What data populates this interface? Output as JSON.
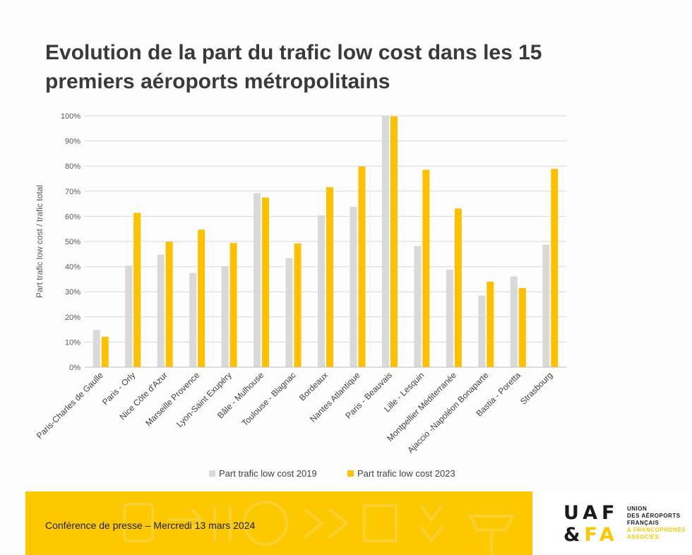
{
  "slide": {
    "title": "Evolution de la part du trafic low cost dans les 15 premiers aéroports métropolitains",
    "footer_text": "Conférence de presse – Mercredi 13 mars 2024",
    "logo": {
      "line1": "UAF",
      "line2_amp": "&",
      "line2_fa": "FA",
      "text_line1": "UNION",
      "text_line2": "DES AÉROPORTS",
      "text_line3": "FRANÇAIS",
      "text_line4": "& FRANCOPHONES",
      "text_line5": "ASSOCIÉS"
    },
    "colors": {
      "accent_yellow": "#fcc800",
      "series_2019": "#d9d9d9",
      "series_2023": "#ffc000",
      "title_text": "#3a3a3a"
    }
  },
  "chart_data": {
    "type": "bar",
    "title": "",
    "xlabel": "",
    "ylabel": "Part trafic low cost / trafic total",
    "ylim": [
      0,
      100
    ],
    "yticks": [
      "0%",
      "10%",
      "20%",
      "30%",
      "40%",
      "50%",
      "60%",
      "70%",
      "80%",
      "90%",
      "100%"
    ],
    "grid": true,
    "legend_position": "bottom",
    "categories": [
      "Paris-Charles de Gaulle",
      "Paris - Orly",
      "Nice Côte d'Azur",
      "Marseille Provence",
      "Lyon-Saint Exupéry",
      "Bâle - Mulhouse",
      "Toulouse - Blagnac",
      "Bordeaux",
      "Nantes Atlantique",
      "Paris - Beauvais",
      "Lille - Lesquin",
      "Montpellier Méditerranée",
      "Ajaccio -Napoléon Bonaparte",
      "Bastia - Poretta",
      "Strasbourg"
    ],
    "series": [
      {
        "name": "Part trafic low cost 2019",
        "color": "#d9d9d9",
        "values": [
          14.8,
          40.4,
          44.8,
          37.5,
          40.1,
          69.2,
          43.4,
          60.4,
          63.8,
          100,
          48.2,
          38.8,
          28.5,
          36.1,
          48.7
        ]
      },
      {
        "name": "Part trafic low cost 2023",
        "color": "#ffc000",
        "values": [
          12.1,
          61.4,
          49.9,
          54.7,
          49.4,
          67.5,
          49.2,
          71.6,
          79.9,
          99.8,
          78.5,
          63.1,
          34.0,
          31.5,
          78.9
        ]
      }
    ]
  }
}
